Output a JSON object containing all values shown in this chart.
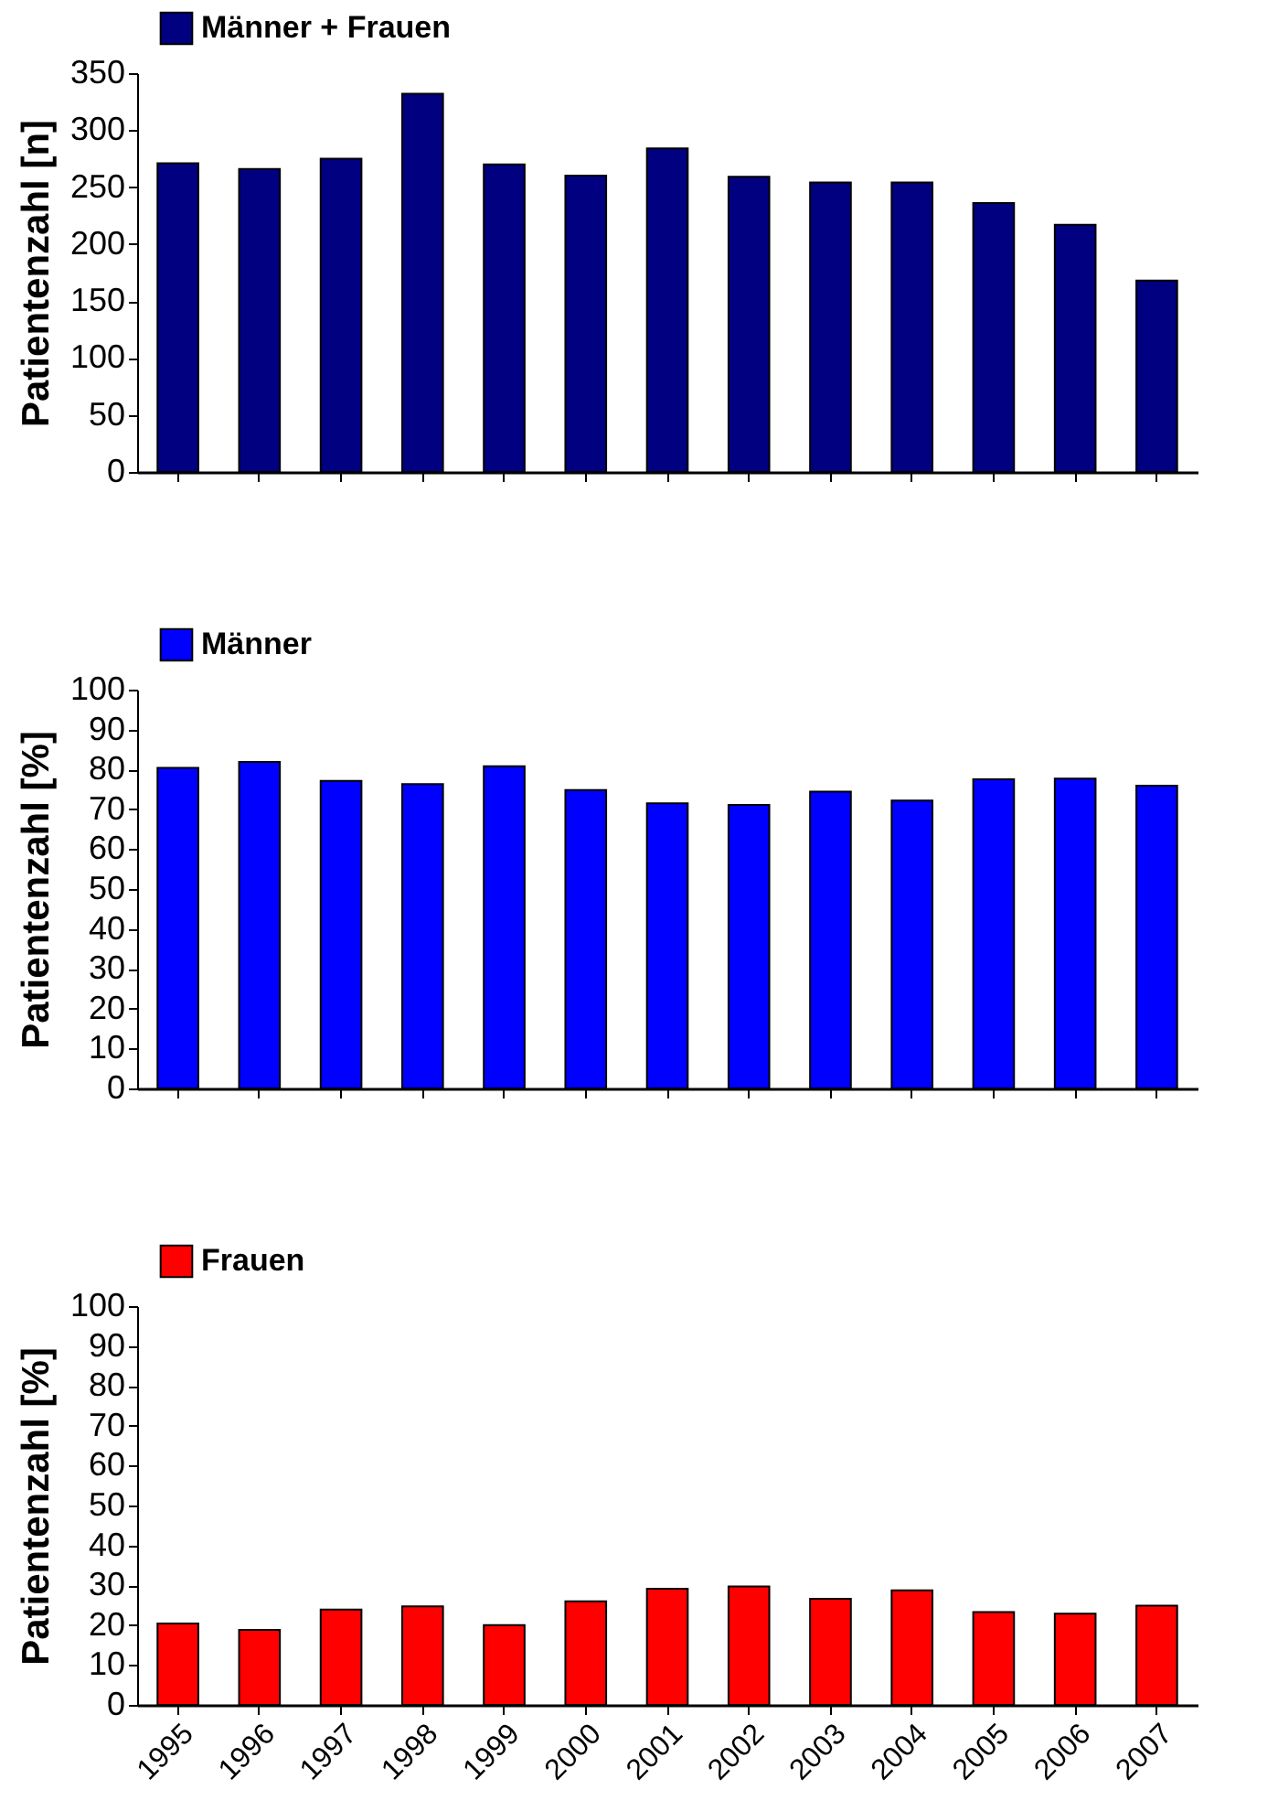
{
  "chart_data": [
    {
      "type": "bar",
      "ylabel": "Patientenzahl [n]",
      "categories": [
        "1995",
        "1996",
        "1997",
        "1998",
        "1999",
        "2000",
        "2001",
        "2002",
        "2003",
        "2004",
        "2005",
        "2006",
        "2007"
      ],
      "series": [
        {
          "name": "Männer + Frauen",
          "color": "#000080",
          "values": [
            271,
            266,
            275,
            332,
            270,
            260,
            284,
            259,
            254,
            254,
            236,
            217,
            168
          ]
        }
      ],
      "ylim": [
        0,
        350
      ],
      "yticks": [
        0,
        50,
        100,
        150,
        200,
        250,
        300,
        350
      ],
      "legend": "top left",
      "tick_labels": "y",
      "grid": false
    },
    {
      "type": "bar",
      "ylabel": "Patientenzahl [%]",
      "categories": [
        "1995",
        "1996",
        "1997",
        "1998",
        "1999",
        "2000",
        "2001",
        "2002",
        "2003",
        "2004",
        "2005",
        "2006",
        "2007"
      ],
      "series": [
        {
          "name": "Männer",
          "color": "#0000ff",
          "values": [
            80.4,
            81.9,
            77.1,
            76.3,
            80.8,
            74.8,
            71.5,
            71.1,
            74.4,
            72.2,
            77.5,
            77.7,
            75.9
          ]
        }
      ],
      "ylim": [
        0,
        100
      ],
      "yticks": [
        0,
        10,
        20,
        30,
        40,
        50,
        60,
        70,
        80,
        90,
        100
      ],
      "legend": "top left",
      "tick_labels": "y",
      "grid": false
    },
    {
      "type": "bar",
      "ylabel": "Patientenzahl [%]",
      "categories": [
        "1995",
        "1996",
        "1997",
        "1998",
        "1999",
        "2000",
        "2001",
        "2002",
        "2003",
        "2004",
        "2005",
        "2006",
        "2007"
      ],
      "series": [
        {
          "name": "Frauen",
          "color": "#ff0000",
          "values": [
            20.4,
            18.8,
            23.9,
            24.7,
            20.0,
            26.0,
            29.1,
            29.7,
            26.6,
            28.7,
            23.3,
            22.9,
            24.9
          ]
        }
      ],
      "ylim": [
        0,
        100
      ],
      "yticks": [
        0,
        10,
        20,
        30,
        40,
        50,
        60,
        70,
        80,
        90,
        100
      ],
      "legend": "top left",
      "grid": false
    }
  ]
}
